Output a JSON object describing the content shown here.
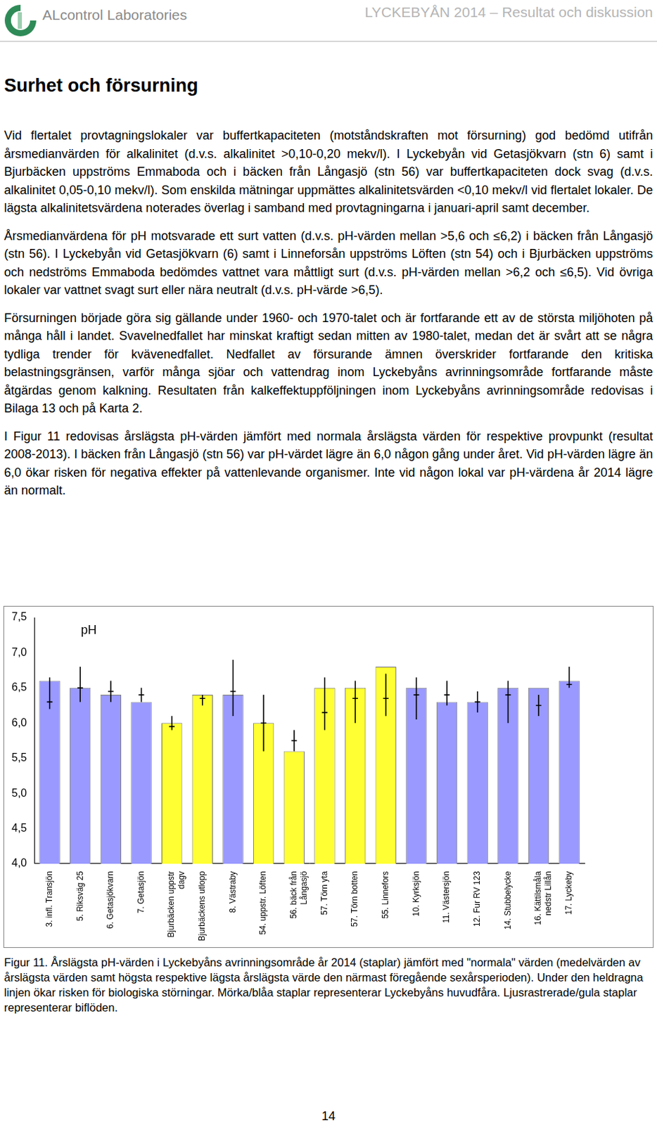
{
  "header": {
    "company": "ALcontrol Laboratories",
    "report": "LYCKEBYÅN 2014 – Resultat och diskussion"
  },
  "title": "Surhet och försurning",
  "paragraphs": [
    "Vid flertalet provtagningslokaler var buffertkapaciteten (motståndskraften mot försurning) god bedömd utifrån årsmedianvärden för alkalinitet (d.v.s. alkalinitet >0,10-0,20 mekv/l). I Lyckebyån vid Getasjökvarn (stn 6) samt i Bjurbäcken uppströms Emmaboda och i bäcken från Långasjö (stn 56) var buffertkapaciteten dock svag (d.v.s. alkalinitet 0,05-0,10 mekv/l). Som enskilda mätningar uppmättes alkalinitetsvärden <0,10 mekv/l vid flertalet lokaler. De lägsta alkalinitetsvärdena noterades överlag i samband med provtagningarna i januari-april samt december.",
    "Årsmedianvärdena för pH motsvarade ett surt vatten (d.v.s. pH-värden mellan >5,6 och ≤6,2) i bäcken från Långasjö (stn 56). I Lyckebyån vid Getasjökvarn (6) samt i Linneforsån uppströms Löften (stn 54) och i Bjurbäcken uppströms och nedströms Emmaboda bedömdes vattnet vara måttligt surt (d.v.s. pH-värden mellan >6,2 och ≤6,5). Vid övriga lokaler var vattnet svagt surt eller nära neutralt (d.v.s. pH-värde >6,5).",
    "Försurningen började göra sig gällande under 1960- och 1970-talet och är fortfarande ett av de största miljöhoten på många håll i landet. Svavelnedfallet har minskat kraftigt sedan mitten av 1980-talet, medan det är svårt att se några tydliga trender för kvävenedfallet. Nedfallet av försurande ämnen överskrider fortfarande den kritiska belastningsgränsen, varför många sjöar och vattendrag inom Lyckebyåns avrinningsområde fortfarande måste åtgärdas genom kalkning. Resultaten från kalkeffektuppföljningen inom Lyckebyåns avrinningsområde redovisas i Bilaga 13 och på Karta 2.",
    "I Figur 11 redovisas årslägsta pH-värden jämfört med normala årslägsta värden för respektive provpunkt (resultat 2008-2013). I bäcken från Långasjö (stn 56) var pH-värdet lägre än 6,0 någon gång under året. Vid pH-värden lägre än 6,0 ökar risken för negativa effekter på vattenlevande organismer. Inte vid någon lokal var pH-värdena år 2014 lägre än normalt."
  ],
  "chart_data": {
    "type": "bar",
    "annotation": "pH",
    "categories": [
      "3. infl. Transjön",
      "5. Riksväg 25",
      "6. Getasjökvarn",
      "7. Getasjön",
      "Bjurbäcken uppstr\ndagv",
      "Bjurbäckens utlopp",
      "8. Västraby",
      "54. uppstr. Löften",
      "56. bäck från\nLångasjö",
      "57. Törn yta",
      "57. Törn botten",
      "55. Linnefors",
      "10. Kyrksjön",
      "11. Västersjön",
      "12. Fur RV 123",
      "14. Stubbelycke",
      "16. Kättilsmåla\nnedstr Lillån",
      "17. Lyckeby"
    ],
    "values": [
      6.6,
      6.5,
      6.4,
      6.3,
      6.0,
      6.4,
      6.4,
      6.0,
      5.6,
      6.5,
      6.5,
      6.8,
      6.5,
      6.3,
      6.3,
      6.5,
      6.5,
      6.6
    ],
    "colors": [
      "#9999ff",
      "#9999ff",
      "#9999ff",
      "#9999ff",
      "#ffff33",
      "#ffff33",
      "#9999ff",
      "#ffff33",
      "#ffff33",
      "#ffff33",
      "#ffff33",
      "#ffff33",
      "#9999ff",
      "#9999ff",
      "#9999ff",
      "#9999ff",
      "#9999ff",
      "#9999ff"
    ],
    "normal_mean": [
      6.3,
      6.5,
      6.45,
      6.4,
      5.95,
      6.35,
      6.45,
      6.0,
      5.75,
      6.15,
      6.35,
      6.35,
      6.4,
      6.4,
      6.3,
      6.4,
      6.25,
      6.55
    ],
    "normal_high": [
      6.65,
      6.8,
      6.6,
      6.5,
      6.1,
      6.4,
      6.9,
      6.4,
      5.9,
      6.65,
      6.6,
      6.7,
      6.65,
      6.6,
      6.45,
      6.6,
      6.4,
      6.8
    ],
    "normal_low": [
      6.2,
      6.3,
      6.3,
      6.3,
      5.9,
      6.25,
      6.1,
      5.6,
      5.6,
      5.9,
      6.0,
      6.1,
      6.05,
      6.25,
      6.15,
      6.0,
      6.1,
      6.5
    ],
    "ylim": [
      4,
      7.5
    ],
    "yticks": [
      {
        "value": 4,
        "label": "4,0"
      },
      {
        "value": 4.5,
        "label": "4,5"
      },
      {
        "value": 5,
        "label": "5,0"
      },
      {
        "value": 5.5,
        "label": "5,5"
      },
      {
        "value": 6,
        "label": "6,0"
      },
      {
        "value": 6.5,
        "label": "6,5"
      },
      {
        "value": 7,
        "label": "7,0"
      },
      {
        "value": 7.5,
        "label": "7,5"
      }
    ],
    "grid": false
  },
  "caption": "Figur 11. Årslägsta pH-värden i Lyckebyåns avrinningsområde år 2014 (staplar) jämfört med \"normala\" värden (medelvärden av årslägsta värden samt högsta respektive lägsta årslägsta värde den närmast föregående sexårsperioden). Under den heldragna linjen ökar risken för biologiska störningar. Mörka/blåa staplar representerar Lyckebyåns huvudfåra. Ljusrastrerade/gula staplar representerar biflöden.",
  "page_number": "14"
}
